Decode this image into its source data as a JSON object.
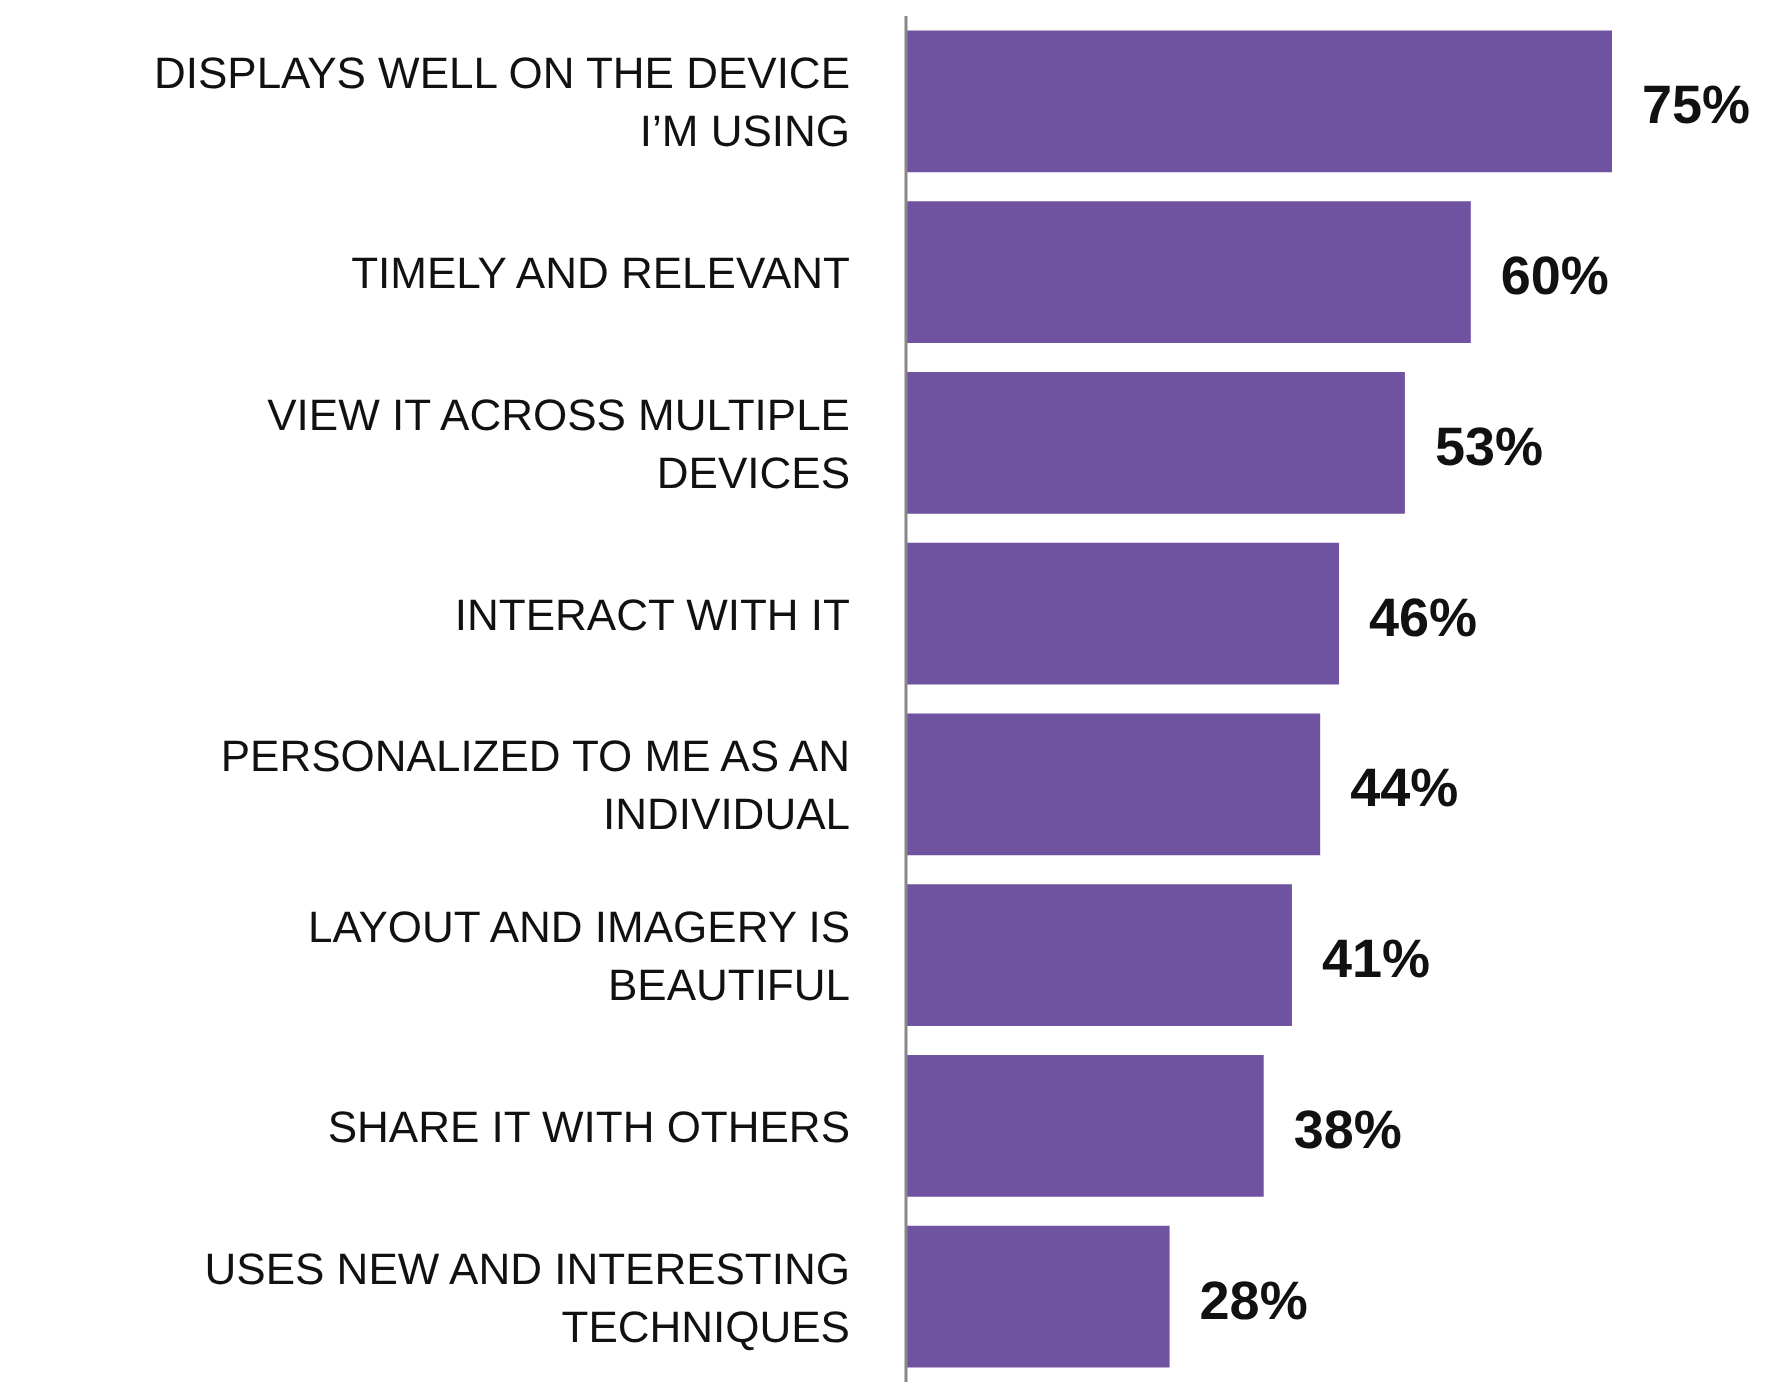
{
  "chart_data": {
    "type": "bar",
    "orientation": "horizontal",
    "categories": [
      "DISPLAYS WELL ON THE DEVICE I’M USING",
      "TIMELY AND RELEVANT",
      "VIEW IT ACROSS MULTIPLE DEVICES",
      "INTERACT WITH IT",
      "PERSONALIZED TO ME AS AN INDIVIDUAL",
      "LAYOUT AND IMAGERY IS BEAUTIFUL",
      "SHARE IT WITH OTHERS",
      "USES NEW AND INTERESTING TECHNIQUES"
    ],
    "values": [
      75,
      60,
      53,
      46,
      44,
      41,
      38,
      28
    ],
    "value_labels": [
      "75%",
      "60%",
      "53%",
      "46%",
      "44%",
      "41%",
      "38%",
      "28%"
    ],
    "color": "#6f53a1",
    "tick_labels": "y"
  }
}
